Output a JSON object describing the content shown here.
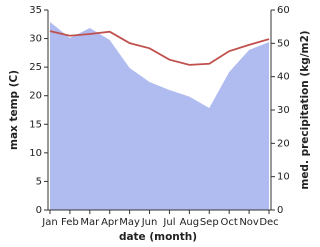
{
  "chart_data": {
    "type": "line",
    "x_label": "date (month)",
    "y_label": "max temp (C)",
    "y2_label": "med. precipitation (kg/m2)",
    "categories": [
      "Jan",
      "Feb",
      "Mar",
      "Apr",
      "May",
      "Jun",
      "Jul",
      "Aug",
      "Sep",
      "Oct",
      "Nov",
      "Dec"
    ],
    "series": [
      {
        "name": "med. precipitation",
        "type": "area",
        "axis": "y2",
        "color": "#b0bcf0",
        "values": [
          56.4,
          51.6,
          54.6,
          51,
          42.6,
          38.4,
          36,
          34,
          30.6,
          41.4,
          48,
          50.4
        ]
      },
      {
        "name": "max temp",
        "type": "line",
        "axis": "y",
        "color": "#c0504d",
        "values": [
          31.3,
          30.5,
          30.8,
          31.2,
          29.2,
          28.3,
          26.3,
          25.4,
          25.6,
          27.8,
          28.9,
          29.9
        ]
      }
    ],
    "ylim": [
      0,
      35
    ],
    "yticks": [
      0,
      5,
      10,
      15,
      20,
      25,
      30,
      35
    ],
    "y2lim": [
      0,
      60
    ],
    "y2ticks": [
      0,
      10,
      20,
      30,
      40,
      50,
      60
    ],
    "grid": false
  }
}
